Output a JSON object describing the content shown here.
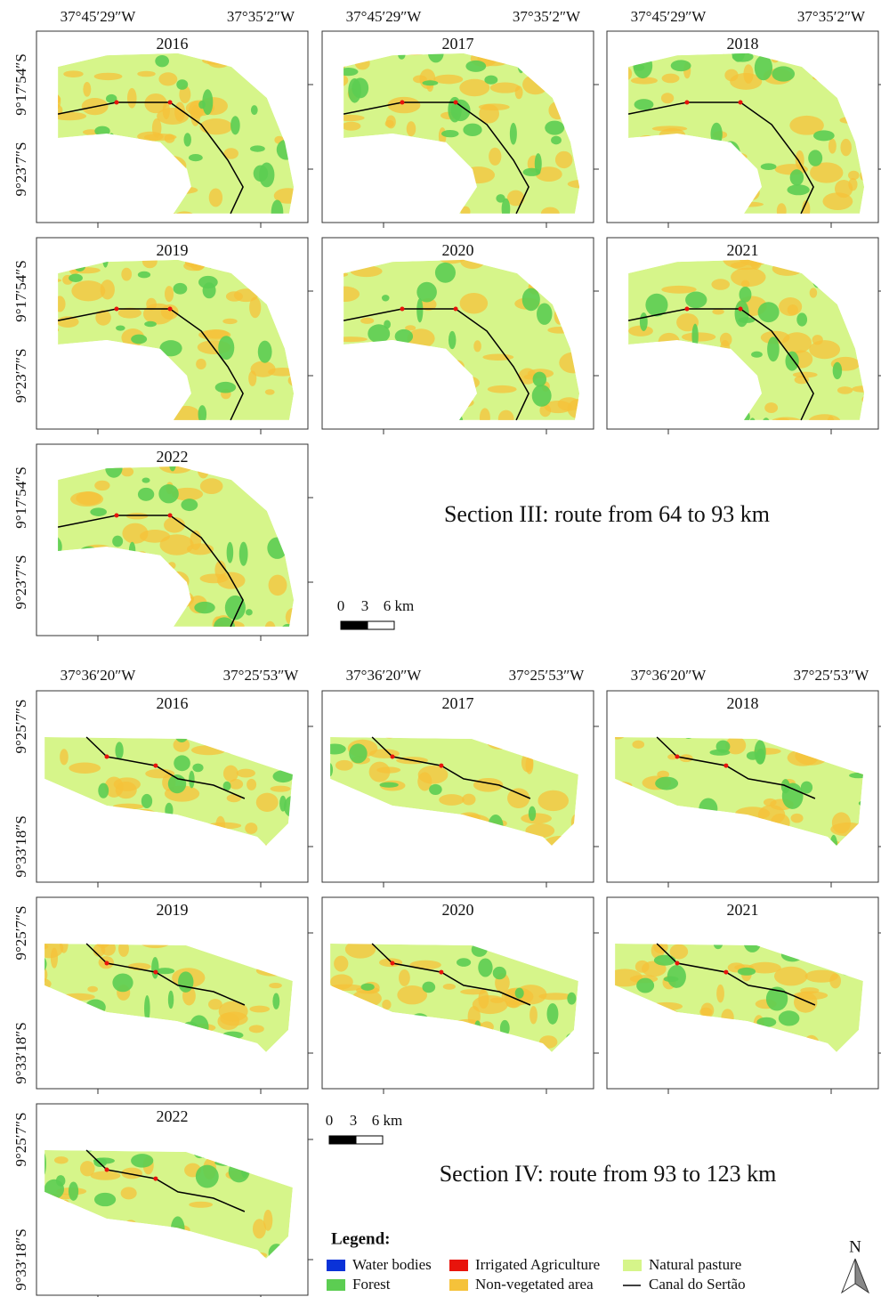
{
  "sections": [
    {
      "lon_labels": [
        "37°45′29″W",
        "37°35′2″W"
      ],
      "lat_labels": [
        "9°17′54″S",
        "9°23′7″S"
      ],
      "years": [
        "2016",
        "2017",
        "2018",
        "2019",
        "2020",
        "2021",
        "2022"
      ],
      "title": "Section III: route from 64 to 93 km",
      "scale_labels": [
        "0",
        "3",
        "6 km"
      ]
    },
    {
      "lon_labels": [
        "37°36′20″W",
        "37°25′53″W"
      ],
      "lat_labels": [
        "9°25′7″S",
        "9°33′18″S"
      ],
      "years": [
        "2016",
        "2017",
        "2018",
        "2019",
        "2020",
        "2021",
        "2022"
      ],
      "title": "Section IV: route from 93 to 123 km",
      "scale_labels": [
        "0",
        "3",
        "6 km"
      ]
    }
  ],
  "legend": {
    "title": "Legend:",
    "items": [
      {
        "label": "Water bodies",
        "color": "#0a32d8"
      },
      {
        "label": "Irrigated Agriculture",
        "color": "#e8140c"
      },
      {
        "label": "Natural pasture",
        "color": "#d6f58a"
      },
      {
        "label": "Forest",
        "color": "#5ccd52"
      },
      {
        "label": "Non-vegetated area",
        "color": "#f5c23a"
      },
      {
        "label": "Canal do Sertão",
        "color": "#000000"
      }
    ]
  },
  "north": "N"
}
